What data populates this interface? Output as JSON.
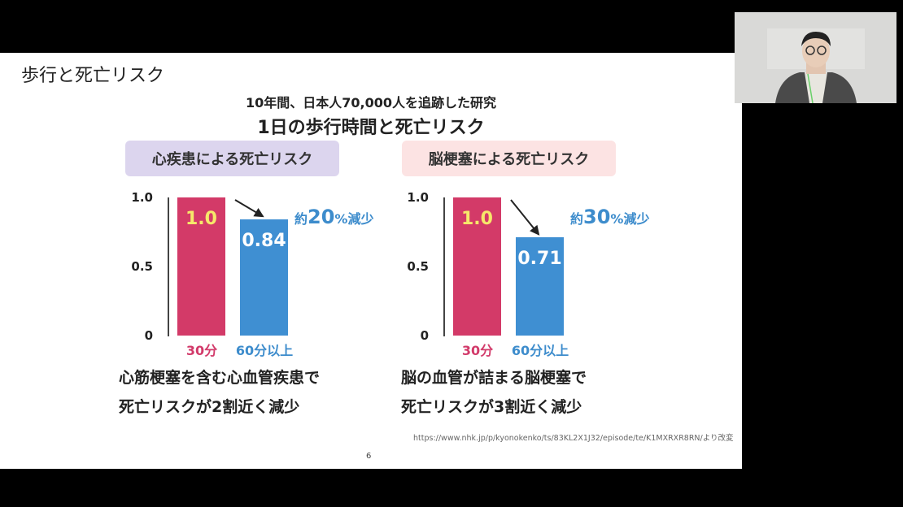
{
  "slide": {
    "title": "歩行と死亡リスク",
    "subtitle1": "10年間、日本人70,000人を追跡した研究",
    "subtitle2": "1日の歩行時間と死亡リスク",
    "page_number": "6",
    "source": "https://www.nhk.jp/p/kyonokenko/ts/83KL2X1J32/episode/te/K1MXRXR8RN/より改変"
  },
  "chart_data": [
    {
      "type": "bar",
      "title": "心疾患による死亡リスク",
      "categories": [
        "30分",
        "60分以上"
      ],
      "values": [
        1.0,
        0.84
      ],
      "value_labels": [
        "1.0",
        "0.84"
      ],
      "yticks": [
        "1.0",
        "0.5",
        "0"
      ],
      "ylim": [
        0,
        1.0
      ],
      "annotation_pre": "約",
      "annotation_num": "20",
      "annotation_post": "%減少",
      "conclusion": [
        "心筋梗塞を含む心血管疾患で",
        "死亡リスクが2割近く減少"
      ]
    },
    {
      "type": "bar",
      "title": "脳梗塞による死亡リスク",
      "categories": [
        "30分",
        "60分以上"
      ],
      "values": [
        1.0,
        0.71
      ],
      "value_labels": [
        "1.0",
        "0.71"
      ],
      "yticks": [
        "1.0",
        "0.5",
        "0"
      ],
      "ylim": [
        0,
        1.0
      ],
      "annotation_pre": "約",
      "annotation_num": "30",
      "annotation_post": "%減少",
      "conclusion": [
        "脳の血管が詰まる脳梗塞で",
        "死亡リスクが3割近く減少"
      ]
    }
  ],
  "colors": {
    "bar_30": "#d33a68",
    "bar_60": "#3f8fd2",
    "title1_bg": "#dcd5ee",
    "title2_bg": "#fce3e3",
    "value_on_red": "#f6e86a"
  }
}
